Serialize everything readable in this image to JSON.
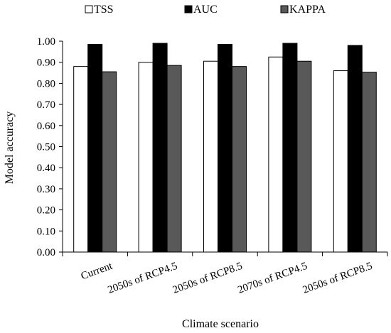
{
  "chart_data": {
    "type": "bar",
    "xlabel": "Climate scenario",
    "ylabel": "Model accuracy",
    "ylim": [
      0,
      1.0
    ],
    "yticks": [
      "0.00",
      "0.10",
      "0.20",
      "0.30",
      "0.40",
      "0.50",
      "0.60",
      "0.70",
      "0.80",
      "0.90",
      "1.00"
    ],
    "categories": [
      "Current",
      "2050s of RCP4.5",
      "2050s of RCP8.5",
      "2070s of RCP4.5",
      "2050s of RCP8.5"
    ],
    "series": [
      {
        "name": "TSS",
        "color": "#ffffff",
        "values": [
          0.88,
          0.9,
          0.905,
          0.925,
          0.86
        ]
      },
      {
        "name": "AUC",
        "color": "#000000",
        "values": [
          0.985,
          0.99,
          0.985,
          0.99,
          0.98
        ]
      },
      {
        "name": "KAPPA",
        "color": "#595959",
        "values": [
          0.855,
          0.885,
          0.88,
          0.905,
          0.853
        ]
      }
    ],
    "legend_position": "top",
    "grid": false
  }
}
